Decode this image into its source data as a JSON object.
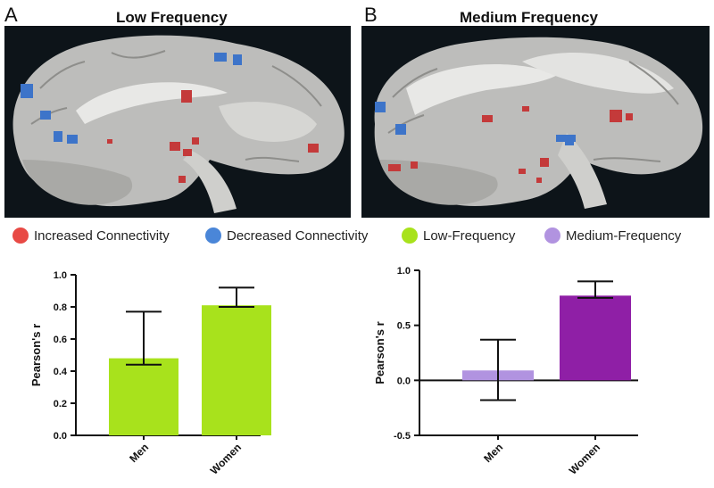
{
  "panels": [
    {
      "letter": "A",
      "title": "Low Frequency"
    },
    {
      "letter": "B",
      "title": "Medium Frequency"
    }
  ],
  "legend": [
    {
      "label": "Increased Connectivity",
      "color": "#e84a45"
    },
    {
      "label": "Decreased Connectivity",
      "color": "#4a86d8"
    },
    {
      "label": "Low-Frequency",
      "color": "#a8e21c"
    },
    {
      "label": "Medium-Frequency",
      "color": "#b193e0"
    }
  ],
  "brain_images": [
    {
      "name": "low-frequency-sagittal-slice",
      "blob_colors": {
        "increased": "#d84040",
        "decreased": "#3d74c9"
      }
    },
    {
      "name": "medium-frequency-sagittal-slice",
      "blob_colors": {
        "increased": "#d84040",
        "decreased": "#3d74c9"
      }
    }
  ],
  "chart_data": [
    {
      "type": "bar",
      "categories": [
        "Men",
        "Women"
      ],
      "values": [
        0.48,
        0.81
      ],
      "error_high": [
        0.77,
        0.92
      ],
      "error_low": [
        0.44,
        0.8
      ],
      "colors": [
        "#a8e21c",
        "#a8e21c"
      ],
      "ylabel": "Pearson's r",
      "ylim": [
        0.0,
        1.0
      ],
      "yticks": [
        "0.0",
        "0.2",
        "0.4",
        "0.6",
        "0.8",
        "1.0"
      ]
    },
    {
      "type": "bar",
      "categories": [
        "Men",
        "Women"
      ],
      "values": [
        0.09,
        0.77
      ],
      "error_high": [
        0.37,
        0.9
      ],
      "error_low": [
        -0.18,
        0.75
      ],
      "colors": [
        "#b193e0",
        "#8f1fa6"
      ],
      "ylabel": "Pearson's r",
      "ylim": [
        -0.5,
        1.0
      ],
      "yticks": [
        "-0.5",
        "0.0",
        "0.5",
        "1.0"
      ]
    }
  ]
}
